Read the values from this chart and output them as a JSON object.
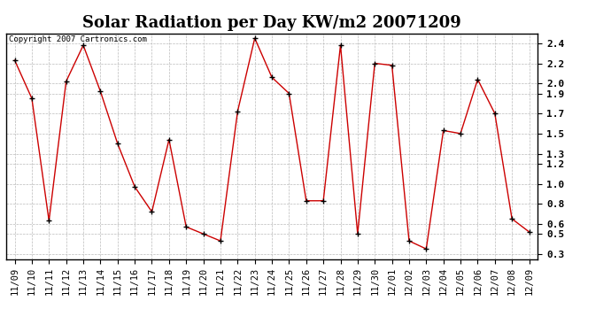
{
  "title": "Solar Radiation per Day KW/m2 20071209",
  "copyright_text": "Copyright 2007 Cartronics.com",
  "dates": [
    "11/09",
    "11/10",
    "11/11",
    "11/12",
    "11/13",
    "11/14",
    "11/15",
    "11/16",
    "11/17",
    "11/18",
    "11/19",
    "11/20",
    "11/21",
    "11/22",
    "11/23",
    "11/24",
    "11/25",
    "11/26",
    "11/27",
    "11/28",
    "11/29",
    "11/30",
    "12/01",
    "12/02",
    "12/03",
    "12/04",
    "12/05",
    "12/06",
    "12/07",
    "12/08",
    "12/09"
  ],
  "values": [
    2.23,
    1.85,
    0.63,
    2.02,
    2.38,
    1.92,
    1.4,
    0.97,
    0.72,
    1.44,
    0.57,
    0.5,
    0.43,
    1.72,
    2.45,
    2.06,
    1.9,
    0.83,
    0.83,
    2.38,
    0.5,
    2.2,
    2.18,
    0.43,
    0.35,
    1.53,
    1.5,
    2.04,
    1.7,
    0.65,
    0.52
  ],
  "line_color": "#cc0000",
  "marker": "+",
  "marker_color": "#000000",
  "bg_color": "#ffffff",
  "grid_color": "#bbbbbb",
  "ylim": [
    0.25,
    2.5
  ],
  "yticks": [
    0.3,
    0.5,
    0.6,
    0.8,
    1.0,
    1.2,
    1.3,
    1.5,
    1.7,
    1.9,
    2.0,
    2.2,
    2.4
  ],
  "ytick_labels": [
    "0.3",
    "0.5",
    "0.6",
    "0.8",
    "1.0",
    "1.2",
    "1.3",
    "1.5",
    "1.7",
    "1.9",
    "2.0",
    "2.2",
    "2.4"
  ],
  "title_fontsize": 13,
  "tick_fontsize": 7.5,
  "copyright_fontsize": 6.5
}
